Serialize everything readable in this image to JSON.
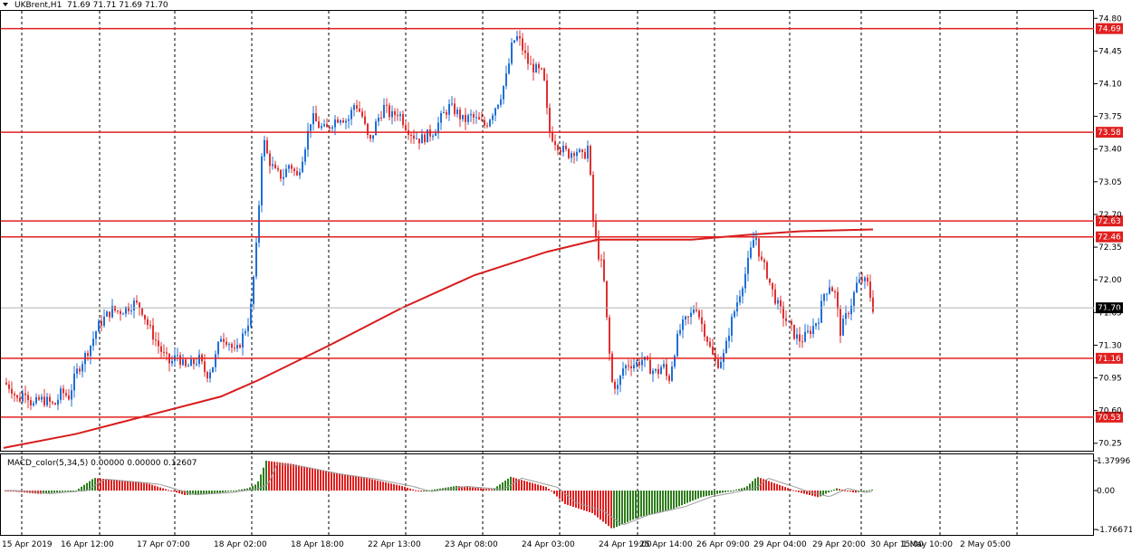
{
  "header": {
    "symbol_label": "UKBrent,H1",
    "ohlc_label": "71.69 71.71 71.69 71.70"
  },
  "indicator": {
    "label": "MACD_color(5,34,5) 0.00000 0.00000 0.12607",
    "axis_labels": [
      "1.37996",
      "0.00",
      "-1.76671"
    ]
  },
  "colors": {
    "bull": "#1f6fd6",
    "bear": "#e03030",
    "level": "#e02020",
    "ma": "#d81c1c",
    "hist_up": "#2f7d1e",
    "hist_down": "#e02020",
    "grid": "#000000"
  },
  "chart_data": {
    "type": "candlestick",
    "symbol": "UKBrent",
    "timeframe": "H1",
    "ylim": [
      70.17,
      74.88
    ],
    "y_ticks": [
      "74.80",
      "74.45",
      "74.10",
      "73.75",
      "73.40",
      "73.05",
      "72.70",
      "72.35",
      "72.00",
      "71.65",
      "71.30",
      "70.95",
      "70.60",
      "70.25"
    ],
    "x_labels": [
      "15 Apr 2019",
      "16 Apr 12:00",
      "17 Apr 07:00",
      "18 Apr 02:00",
      "18 Apr 18:00",
      "22 Apr 13:00",
      "23 Apr 08:00",
      "24 Apr 03:00",
      "24 Apr 19:00",
      "25 Apr 14:00",
      "26 Apr 09:00",
      "29 Apr 04:00",
      "29 Apr 20:00",
      "30 Apr 15:00",
      "1 May 10:00",
      "2 May 05:00"
    ],
    "horizontal_levels": [
      {
        "value": 74.69,
        "label": "74.69"
      },
      {
        "value": 73.58,
        "label": "73.58"
      },
      {
        "value": 72.63,
        "label": "72.63"
      },
      {
        "value": 72.46,
        "label": "72.46"
      },
      {
        "value": 71.16,
        "label": "71.16"
      },
      {
        "value": 70.53,
        "label": "70.53"
      }
    ],
    "current_price": {
      "value": 71.7,
      "label": "71.70"
    },
    "close_path": [
      [
        0,
        70.9
      ],
      [
        8,
        70.85
      ],
      [
        16,
        70.7
      ],
      [
        24,
        70.82
      ],
      [
        32,
        70.65
      ],
      [
        40,
        70.72
      ],
      [
        48,
        70.7
      ],
      [
        56,
        70.65
      ],
      [
        64,
        70.8
      ],
      [
        72,
        70.75
      ],
      [
        80,
        71.0
      ],
      [
        88,
        71.15
      ],
      [
        96,
        71.3
      ],
      [
        104,
        71.5
      ],
      [
        112,
        71.6
      ],
      [
        120,
        71.68
      ],
      [
        128,
        71.66
      ],
      [
        136,
        71.7
      ],
      [
        144,
        71.75
      ],
      [
        152,
        71.7
      ],
      [
        160,
        71.5
      ],
      [
        168,
        71.35
      ],
      [
        176,
        71.2
      ],
      [
        184,
        71.1
      ],
      [
        192,
        71.2
      ],
      [
        200,
        71.05
      ],
      [
        208,
        71.1
      ],
      [
        216,
        71.15
      ],
      [
        224,
        70.98
      ],
      [
        232,
        71.1
      ],
      [
        240,
        71.4
      ],
      [
        248,
        71.35
      ],
      [
        256,
        71.2
      ],
      [
        264,
        71.4
      ],
      [
        272,
        71.6
      ],
      [
        280,
        72.45
      ],
      [
        286,
        73.55
      ],
      [
        292,
        73.3
      ],
      [
        300,
        73.15
      ],
      [
        308,
        73.1
      ],
      [
        316,
        73.25
      ],
      [
        324,
        73.1
      ],
      [
        332,
        73.4
      ],
      [
        340,
        73.75
      ],
      [
        348,
        73.65
      ],
      [
        356,
        73.6
      ],
      [
        364,
        73.7
      ],
      [
        372,
        73.75
      ],
      [
        380,
        73.7
      ],
      [
        388,
        73.9
      ],
      [
        396,
        73.75
      ],
      [
        404,
        73.45
      ],
      [
        412,
        73.7
      ],
      [
        420,
        73.85
      ],
      [
        428,
        73.75
      ],
      [
        436,
        73.8
      ],
      [
        444,
        73.65
      ],
      [
        452,
        73.55
      ],
      [
        460,
        73.5
      ],
      [
        468,
        73.55
      ],
      [
        476,
        73.6
      ],
      [
        484,
        73.75
      ],
      [
        492,
        73.85
      ],
      [
        500,
        73.8
      ],
      [
        508,
        73.7
      ],
      [
        516,
        73.75
      ],
      [
        524,
        73.7
      ],
      [
        532,
        73.65
      ],
      [
        540,
        73.8
      ],
      [
        548,
        73.95
      ],
      [
        556,
        74.2
      ],
      [
        562,
        74.55
      ],
      [
        568,
        74.6
      ],
      [
        574,
        74.45
      ],
      [
        580,
        74.3
      ],
      [
        588,
        74.25
      ],
      [
        596,
        74.2
      ],
      [
        602,
        73.6
      ],
      [
        608,
        73.5
      ],
      [
        616,
        73.4
      ],
      [
        624,
        73.35
      ],
      [
        632,
        73.4
      ],
      [
        640,
        73.3
      ],
      [
        646,
        73.45
      ],
      [
        650,
        72.7
      ],
      [
        656,
        72.3
      ],
      [
        662,
        72.1
      ],
      [
        668,
        71.3
      ],
      [
        672,
        70.9
      ],
      [
        678,
        70.85
      ],
      [
        684,
        71.05
      ],
      [
        690,
        71.1
      ],
      [
        698,
        71.1
      ],
      [
        706,
        71.15
      ],
      [
        714,
        71.05
      ],
      [
        722,
        71.0
      ],
      [
        728,
        71.1
      ],
      [
        734,
        70.9
      ],
      [
        740,
        71.2
      ],
      [
        746,
        71.45
      ],
      [
        752,
        71.55
      ],
      [
        758,
        71.6
      ],
      [
        764,
        71.75
      ],
      [
        770,
        71.55
      ],
      [
        776,
        71.4
      ],
      [
        782,
        71.2
      ],
      [
        788,
        71.1
      ],
      [
        796,
        71.2
      ],
      [
        802,
        71.5
      ],
      [
        808,
        71.7
      ],
      [
        814,
        71.9
      ],
      [
        820,
        72.1
      ],
      [
        826,
        72.35
      ],
      [
        830,
        72.5
      ],
      [
        836,
        72.2
      ],
      [
        842,
        72.1
      ],
      [
        848,
        71.9
      ],
      [
        856,
        71.7
      ],
      [
        862,
        71.6
      ],
      [
        868,
        71.5
      ],
      [
        874,
        71.4
      ],
      [
        880,
        71.35
      ],
      [
        886,
        71.4
      ],
      [
        894,
        71.5
      ],
      [
        900,
        71.6
      ],
      [
        906,
        71.85
      ],
      [
        912,
        71.95
      ],
      [
        918,
        71.85
      ],
      [
        924,
        71.45
      ],
      [
        930,
        71.6
      ],
      [
        936,
        71.75
      ],
      [
        942,
        71.95
      ],
      [
        948,
        72.0
      ],
      [
        954,
        71.95
      ],
      [
        960,
        71.7
      ]
    ],
    "moving_average": {
      "type": "line",
      "points": [
        [
          0,
          70.2
        ],
        [
          80,
          70.35
        ],
        [
          160,
          70.55
        ],
        [
          240,
          70.75
        ],
        [
          280,
          70.92
        ],
        [
          360,
          71.3
        ],
        [
          440,
          71.7
        ],
        [
          520,
          72.05
        ],
        [
          600,
          72.3
        ],
        [
          656,
          72.43
        ],
        [
          700,
          72.43
        ],
        [
          760,
          72.43
        ],
        [
          820,
          72.48
        ],
        [
          880,
          72.52
        ],
        [
          960,
          72.54
        ]
      ]
    },
    "macd_histogram": {
      "ylim": [
        -1.76671,
        1.37996
      ],
      "points": [
        [
          0,
          0.0
        ],
        [
          40,
          -0.15
        ],
        [
          80,
          0.0
        ],
        [
          100,
          0.55
        ],
        [
          140,
          0.4
        ],
        [
          160,
          0.3
        ],
        [
          200,
          -0.2
        ],
        [
          240,
          -0.1
        ],
        [
          270,
          0.1
        ],
        [
          280,
          0.3
        ],
        [
          290,
          1.3
        ],
        [
          320,
          1.15
        ],
        [
          360,
          0.8
        ],
        [
          400,
          0.55
        ],
        [
          440,
          0.2
        ],
        [
          460,
          -0.05
        ],
        [
          500,
          0.2
        ],
        [
          540,
          0.05
        ],
        [
          560,
          0.6
        ],
        [
          600,
          0.15
        ],
        [
          620,
          -0.6
        ],
        [
          650,
          -1.0
        ],
        [
          672,
          -1.7
        ],
        [
          700,
          -1.2
        ],
        [
          740,
          -0.8
        ],
        [
          770,
          -0.3
        ],
        [
          800,
          -0.05
        ],
        [
          820,
          0.15
        ],
        [
          832,
          0.6
        ],
        [
          860,
          0.2
        ],
        [
          880,
          -0.1
        ],
        [
          900,
          -0.3
        ],
        [
          920,
          0.1
        ],
        [
          940,
          -0.1
        ],
        [
          960,
          0.05
        ]
      ]
    }
  }
}
